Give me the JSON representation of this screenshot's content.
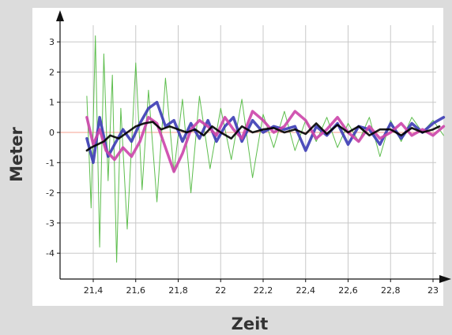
{
  "chart_data": {
    "type": "line",
    "title": "",
    "xlabel": "Zeit",
    "ylabel": "Meter",
    "xlim": [
      21.28,
      23.05
    ],
    "ylim": [
      -4.7,
      3.4
    ],
    "xticks": [
      21.4,
      21.6,
      21.8,
      22,
      22.2,
      22.4,
      22.6,
      22.8,
      23
    ],
    "xtick_labels": [
      "21,4",
      "21,6",
      "21,8",
      "22",
      "22,2",
      "22,4",
      "22,6",
      "22,8",
      "23"
    ],
    "yticks": [
      3,
      2,
      1,
      0,
      -1,
      -2,
      -3,
      -4
    ],
    "ytick_labels": [
      "3",
      "2",
      "1",
      "0",
      "-1",
      "-2",
      "-3",
      "-4"
    ],
    "grid": true,
    "reference_line": {
      "y": 0,
      "color": "#f4a090"
    },
    "series": [
      {
        "color": "#55bb44",
        "x": [
          21.37,
          21.39,
          21.41,
          21.43,
          21.45,
          21.47,
          21.49,
          21.51,
          21.53,
          21.56,
          21.6,
          21.63,
          21.66,
          21.7,
          21.74,
          21.78,
          21.82,
          21.86,
          21.9,
          21.95,
          22.0,
          22.05,
          22.1,
          22.15,
          22.2,
          22.25,
          22.3,
          22.35,
          22.4,
          22.45,
          22.5,
          22.55,
          22.6,
          22.65,
          22.7,
          22.75,
          22.8,
          22.85,
          22.9,
          22.95,
          23.0,
          23.05
        ],
        "y": [
          1.2,
          -2.5,
          3.2,
          -3.8,
          2.6,
          -1.6,
          1.9,
          -4.3,
          0.8,
          -3.2,
          2.3,
          -1.9,
          1.4,
          -2.3,
          1.8,
          -1.3,
          1.1,
          -2.0,
          1.2,
          -1.2,
          0.8,
          -0.9,
          1.1,
          -1.5,
          0.6,
          -0.5,
          0.7,
          -0.6,
          0.4,
          -0.3,
          0.5,
          -0.5,
          0.3,
          -0.3,
          0.5,
          -0.8,
          0.4,
          -0.3,
          0.5,
          0.0,
          0.4,
          -0.1
        ]
      },
      {
        "color": "#3b3bb5",
        "x": [
          21.37,
          21.4,
          21.43,
          21.47,
          21.5,
          21.54,
          21.58,
          21.62,
          21.66,
          21.7,
          21.74,
          21.78,
          21.82,
          21.86,
          21.9,
          21.94,
          21.98,
          22.02,
          22.06,
          22.1,
          22.15,
          22.2,
          22.25,
          22.3,
          22.35,
          22.4,
          22.45,
          22.5,
          22.55,
          22.6,
          22.65,
          22.7,
          22.75,
          22.8,
          22.85,
          22.9,
          22.95,
          23.0,
          23.05
        ],
        "y": [
          -0.2,
          -1.0,
          0.5,
          -0.8,
          -0.4,
          0.1,
          -0.3,
          0.3,
          0.8,
          1.0,
          0.2,
          0.4,
          -0.3,
          0.3,
          -0.2,
          0.4,
          -0.3,
          0.2,
          0.5,
          -0.3,
          0.4,
          0.0,
          0.2,
          0.1,
          0.2,
          -0.6,
          0.2,
          -0.1,
          0.3,
          -0.4,
          0.2,
          0.1,
          -0.4,
          0.3,
          -0.2,
          0.3,
          0.0,
          0.3,
          0.5
        ]
      },
      {
        "color": "#cc44aa",
        "x": [
          21.37,
          21.4,
          21.43,
          21.46,
          21.5,
          21.54,
          21.58,
          21.62,
          21.66,
          21.7,
          21.74,
          21.78,
          21.82,
          21.86,
          21.9,
          21.94,
          21.98,
          22.02,
          22.06,
          22.1,
          22.15,
          22.2,
          22.25,
          22.3,
          22.35,
          22.4,
          22.45,
          22.5,
          22.55,
          22.6,
          22.65,
          22.7,
          22.75,
          22.8,
          22.85,
          22.9,
          22.95,
          23.0,
          23.05
        ],
        "y": [
          0.5,
          -0.4,
          0.1,
          -0.6,
          -0.9,
          -0.5,
          -0.8,
          -0.3,
          0.5,
          0.3,
          -0.5,
          -1.3,
          -0.7,
          0.1,
          0.4,
          0.2,
          -0.1,
          0.5,
          0.1,
          -0.2,
          0.7,
          0.4,
          0.0,
          0.2,
          0.7,
          0.4,
          -0.2,
          0.1,
          0.5,
          0.0,
          -0.3,
          0.2,
          -0.2,
          0.0,
          0.3,
          -0.1,
          0.1,
          -0.1,
          0.2
        ]
      },
      {
        "color": "#000000",
        "x": [
          21.37,
          21.39,
          21.42,
          21.45,
          21.48,
          21.52,
          21.56,
          21.6,
          21.64,
          21.68,
          21.72,
          21.76,
          21.8,
          21.84,
          21.88,
          21.92,
          21.96,
          22.0,
          22.05,
          22.1,
          22.15,
          22.2,
          22.25,
          22.3,
          22.35,
          22.4,
          22.45,
          22.5,
          22.55,
          22.6,
          22.65,
          22.7,
          22.75,
          22.8,
          22.85,
          22.9,
          22.95,
          23.0,
          23.03
        ],
        "y": [
          -0.6,
          -0.5,
          -0.4,
          -0.3,
          -0.1,
          -0.2,
          0.0,
          0.2,
          0.3,
          0.35,
          0.1,
          0.2,
          0.1,
          0.0,
          0.1,
          -0.1,
          0.2,
          0.0,
          -0.2,
          0.2,
          0.0,
          0.1,
          0.15,
          0.0,
          0.1,
          -0.05,
          0.3,
          -0.05,
          0.25,
          0.0,
          0.2,
          -0.1,
          0.1,
          0.1,
          -0.1,
          0.15,
          0.0,
          0.1,
          0.2
        ]
      }
    ]
  }
}
